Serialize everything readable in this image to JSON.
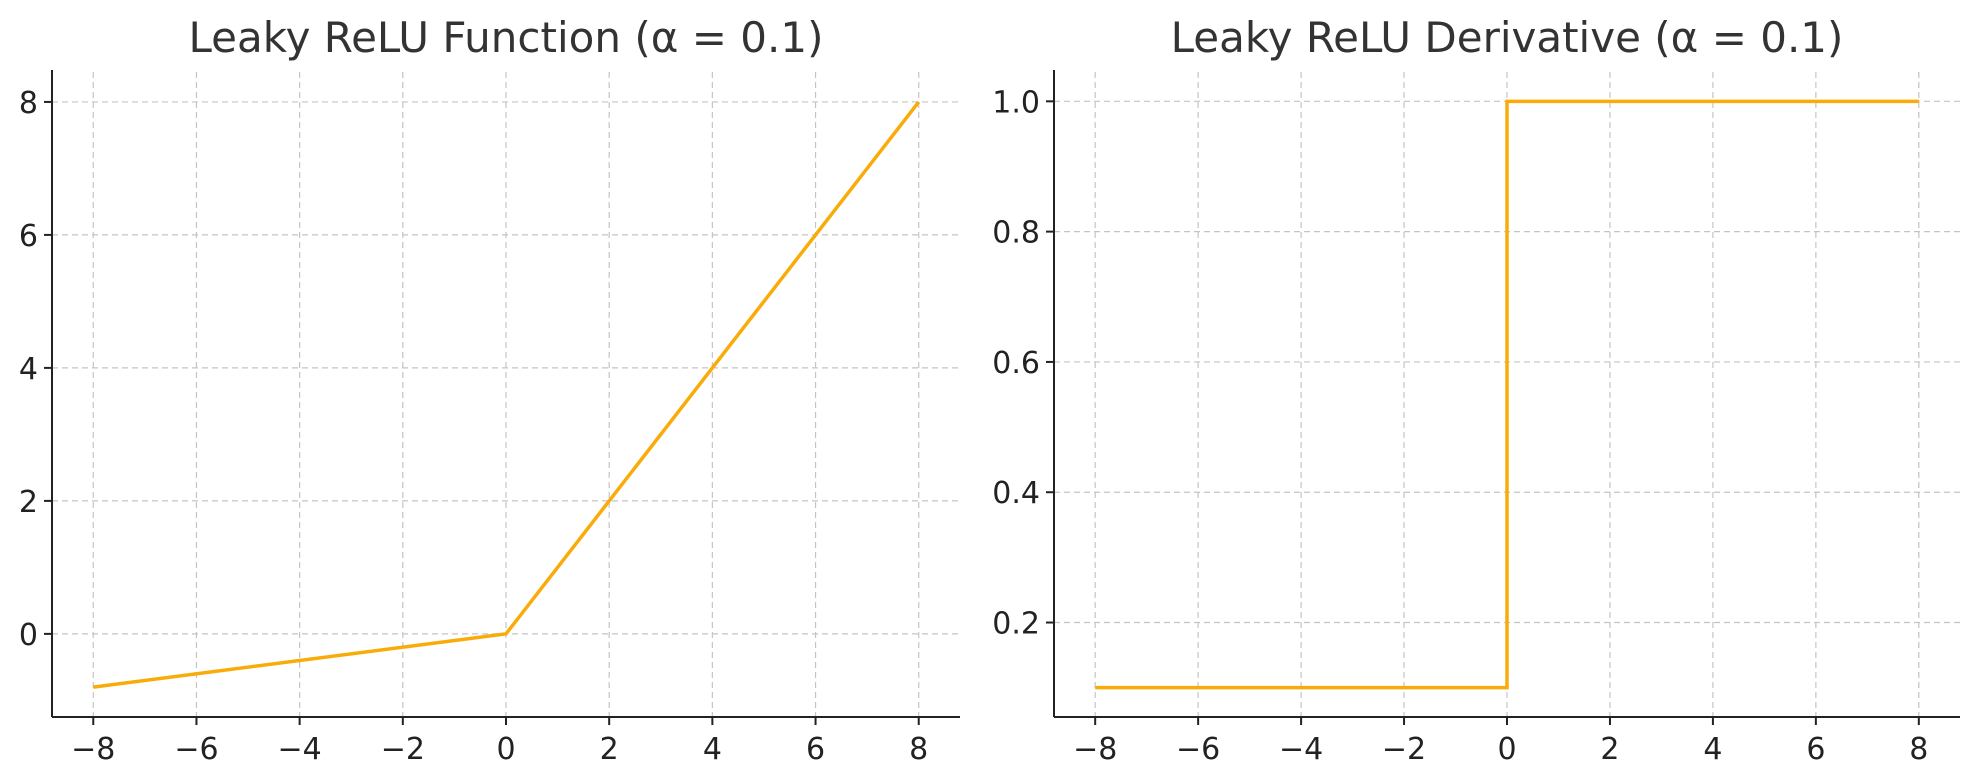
{
  "chart_data": [
    {
      "type": "line",
      "title": "Leaky ReLU Function (α = 0.1)",
      "xlabel": "",
      "ylabel": "",
      "xlim": [
        -8.8,
        8.8
      ],
      "ylim": [
        -1.25,
        8.45
      ],
      "x_ticks": [
        -8,
        -6,
        -4,
        -2,
        0,
        2,
        4,
        6,
        8
      ],
      "x_tick_labels": [
        "−8",
        "−6",
        "−4",
        "−2",
        "0",
        "2",
        "4",
        "6",
        "8"
      ],
      "y_ticks": [
        0,
        2,
        4,
        6,
        8
      ],
      "y_tick_labels": [
        "0",
        "2",
        "4",
        "6",
        "8"
      ],
      "grid": true,
      "series": [
        {
          "color": "#f9ab0a",
          "x": [
            -8,
            0,
            8
          ],
          "y": [
            -0.8,
            0,
            8
          ]
        }
      ]
    },
    {
      "type": "line",
      "title": "Leaky ReLU Derivative (α = 0.1)",
      "xlabel": "",
      "ylabel": "",
      "xlim": [
        -8.8,
        8.8
      ],
      "ylim": [
        0.055,
        1.045
      ],
      "x_ticks": [
        -8,
        -6,
        -4,
        -2,
        0,
        2,
        4,
        6,
        8
      ],
      "x_tick_labels": [
        "−8",
        "−6",
        "−4",
        "−2",
        "0",
        "2",
        "4",
        "6",
        "8"
      ],
      "y_ticks": [
        0.2,
        0.4,
        0.6,
        0.8,
        1.0
      ],
      "y_tick_labels": [
        "0.2",
        "0.4",
        "0.6",
        "0.8",
        "1.0"
      ],
      "grid": true,
      "series": [
        {
          "color": "#f9ab0a",
          "x": [
            -8,
            0,
            0,
            8
          ],
          "y": [
            0.1,
            0.1,
            1.0,
            1.0
          ]
        }
      ]
    }
  ]
}
